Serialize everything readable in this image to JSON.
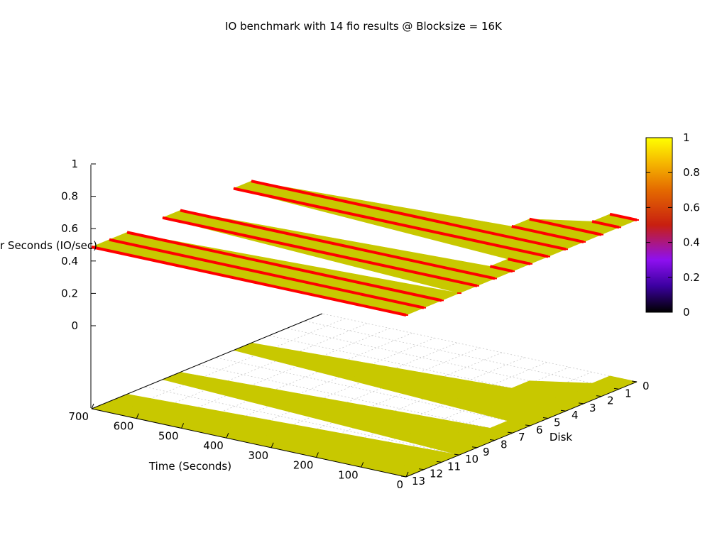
{
  "chart_data": {
    "type": "surface3d",
    "title": "IO benchmark with 14 fio results @ Blocksize = 16K",
    "xlabel": "Time (Seconds)",
    "ylabel": "Disk",
    "zlabel": "IO per Seconds (IO/sec)",
    "zlabel_visible": "r Seconds (IO/sec)",
    "xlim": [
      0,
      700
    ],
    "ylim": [
      0,
      13
    ],
    "zlim": [
      0,
      1
    ],
    "x_ticks": [
      "0",
      "100",
      "200",
      "300",
      "400",
      "500",
      "600",
      "700"
    ],
    "y_ticks": [
      "0",
      "1",
      "2",
      "3",
      "4",
      "5",
      "6",
      "7",
      "8",
      "9",
      "10",
      "11",
      "12",
      "13"
    ],
    "z_ticks": [
      "0",
      "0.2",
      "0.4",
      "0.6",
      "0.8",
      "1"
    ],
    "colorbar": {
      "ticks": [
        "0",
        "0.2",
        "0.4",
        "0.6",
        "0.8",
        "1"
      ],
      "stops": [
        "#000000",
        "#3b00a0",
        "#8e10f0",
        "#c81f10",
        "#e46a00",
        "#f5b400",
        "#ffff00"
      ]
    },
    "surface_color": "#c8c800",
    "edge_color": "#ff0000",
    "grid": true,
    "series": [
      {
        "disk": 0,
        "x_end": 60,
        "value": 1
      },
      {
        "disk": 1,
        "x_end": 60,
        "value": 1
      },
      {
        "disk": 2,
        "x_end": 160,
        "value": 1
      },
      {
        "disk": 3,
        "x_end": 160,
        "value": 1
      },
      {
        "disk": 4,
        "x_end": 700,
        "value": 1
      },
      {
        "disk": 5,
        "x_end": 700,
        "value": 1
      },
      {
        "disk": 6,
        "x_end": 50,
        "value": 1
      },
      {
        "disk": 7,
        "x_end": 50,
        "value": 1
      },
      {
        "disk": 8,
        "x_end": 700,
        "value": 1
      },
      {
        "disk": 9,
        "x_end": 700,
        "value": 1
      },
      {
        "disk": 10,
        "x_end": 0,
        "value": 1
      },
      {
        "disk": 11,
        "x_end": 700,
        "value": 1
      },
      {
        "disk": 12,
        "x_end": 700,
        "value": 1
      },
      {
        "disk": 13,
        "x_end": 700,
        "value": 1
      }
    ]
  }
}
